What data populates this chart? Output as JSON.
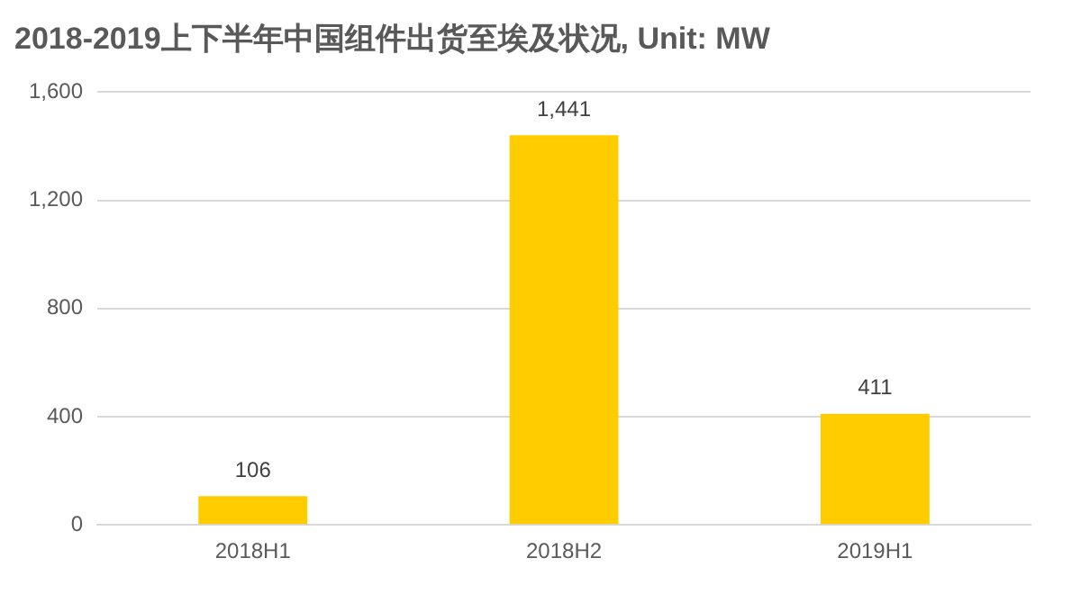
{
  "chart_data": {
    "type": "bar",
    "title": "2018-2019上下半年中国组件出货至埃及状况, Unit: MW",
    "categories": [
      "2018H1",
      "2018H2",
      "2019H1"
    ],
    "values": [
      106,
      1441,
      411
    ],
    "color": "#ffcc00",
    "ylim": [
      0,
      1600
    ],
    "yticks": [
      0,
      {
        "value": 400,
        "label": "400"
      },
      {
        "value": 800,
        "label": "800"
      },
      {
        "value": 1200,
        "label": "1,200"
      },
      {
        "value": 1600,
        "label": "1,600"
      }
    ],
    "grid": "y",
    "value_labels": [
      "106",
      "1,441",
      "411"
    ]
  }
}
